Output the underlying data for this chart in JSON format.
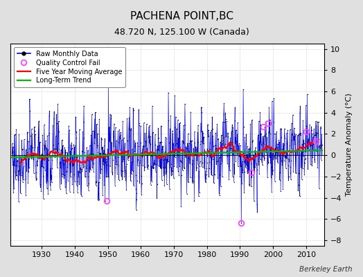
{
  "title": "PACHENA POINT,BC",
  "subtitle": "48.720 N, 125.100 W (Canada)",
  "ylabel": "Temperature Anomaly (°C)",
  "watermark": "Berkeley Earth",
  "xlim": [
    1920.5,
    2015.5
  ],
  "ylim": [
    -8.5,
    10.5
  ],
  "yticks": [
    -8,
    -6,
    -4,
    -2,
    0,
    2,
    4,
    6,
    8,
    10
  ],
  "xticks": [
    1930,
    1940,
    1950,
    1960,
    1970,
    1980,
    1990,
    2000,
    2010
  ],
  "bg_color": "#e0e0e0",
  "plot_bg_color": "#ffffff",
  "raw_line_color": "#0000dd",
  "raw_marker_color": "#000000",
  "stem_color": "#8888ff",
  "ma_color": "#ff0000",
  "trend_color": "#00bb00",
  "qc_color": "#ff44ff",
  "seed": 77,
  "n_months": 1128,
  "start_year": 1921.0,
  "trend_slope": 0.007,
  "trend_intercept": -0.2,
  "ma_window": 60,
  "qc_fails": [
    {
      "year": 1949.75,
      "value": -4.3
    },
    {
      "year": 1990.25,
      "value": -6.4
    },
    {
      "year": 1993.5,
      "value": -1.6
    },
    {
      "year": 1997.0,
      "value": 2.7
    },
    {
      "year": 1998.5,
      "value": 3.0
    },
    {
      "year": 2010.0,
      "value": 2.2
    },
    {
      "year": 2013.0,
      "value": 1.3
    }
  ],
  "legend_entries": [
    "Raw Monthly Data",
    "Quality Control Fail",
    "Five Year Moving Average",
    "Long-Term Trend"
  ],
  "title_fontsize": 11,
  "subtitle_fontsize": 9,
  "tick_fontsize": 8,
  "ylabel_fontsize": 8
}
